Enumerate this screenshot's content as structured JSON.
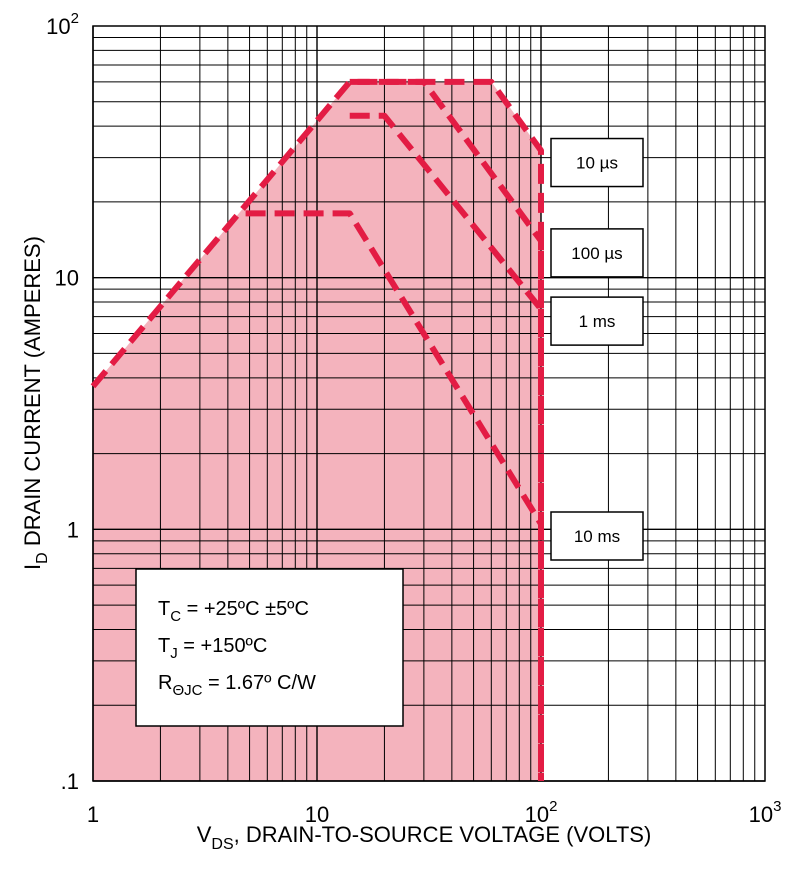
{
  "chart_data": {
    "type": "line",
    "title": "",
    "xlabel": {
      "main": "V",
      "sub": "DS",
      "rest": ", DRAIN-TO-SOURCE VOLTAGE (VOLTS)"
    },
    "ylabel": {
      "main": "I",
      "sub": "D",
      "rest": " DRAIN CURRENT (AMPERES)"
    },
    "x_scale": "log",
    "y_scale": "log",
    "xlim": [
      1,
      1000
    ],
    "ylim": [
      0.1,
      100
    ],
    "x_ticks": [
      {
        "value": 1,
        "base": "1",
        "exp": ""
      },
      {
        "value": 10,
        "base": "10",
        "exp": ""
      },
      {
        "value": 100,
        "base": "10",
        "exp": "2"
      },
      {
        "value": 1000,
        "base": "10",
        "exp": "3"
      }
    ],
    "y_ticks": [
      {
        "value": 0.1,
        "base": ".1",
        "exp": ""
      },
      {
        "value": 1,
        "base": "1",
        "exp": ""
      },
      {
        "value": 10,
        "base": "10",
        "exp": ""
      },
      {
        "value": 100,
        "base": "10",
        "exp": "2"
      }
    ],
    "grid": true,
    "colors": {
      "fill": "#f4b3bd",
      "line": "#e31c44"
    },
    "series": [
      {
        "label": "10 µs",
        "points": [
          [
            1,
            3.7
          ],
          [
            14,
            60
          ],
          [
            60,
            60
          ],
          [
            100,
            32
          ],
          [
            100,
            0.1
          ]
        ]
      },
      {
        "label": "100 µs",
        "points": [
          [
            14,
            60
          ],
          [
            30,
            60
          ],
          [
            100,
            14
          ],
          [
            100,
            0.1
          ]
        ]
      },
      {
        "label": "1 ms",
        "points": [
          [
            14,
            44
          ],
          [
            20,
            44
          ],
          [
            100,
            7.5
          ],
          [
            100,
            0.1
          ]
        ]
      },
      {
        "label": "10 ms",
        "points": [
          [
            4.8,
            18
          ],
          [
            14,
            18
          ],
          [
            100,
            1.05
          ],
          [
            100,
            0.1
          ]
        ]
      }
    ],
    "labels": [
      {
        "text": "10 µs",
        "series": 0
      },
      {
        "text": "100 µs",
        "series": 1
      },
      {
        "text": "1 ms",
        "series": 2
      },
      {
        "text": "10 ms",
        "series": 3
      }
    ],
    "conditions": [
      {
        "main": "T",
        "sub": "C",
        "rest": " = +25ºC ±5ºC"
      },
      {
        "main": "T",
        "sub": "J",
        "rest": " = +150ºC"
      },
      {
        "main": "R",
        "sub": "ΘJC",
        "rest": " = 1.67º C/W"
      }
    ]
  }
}
